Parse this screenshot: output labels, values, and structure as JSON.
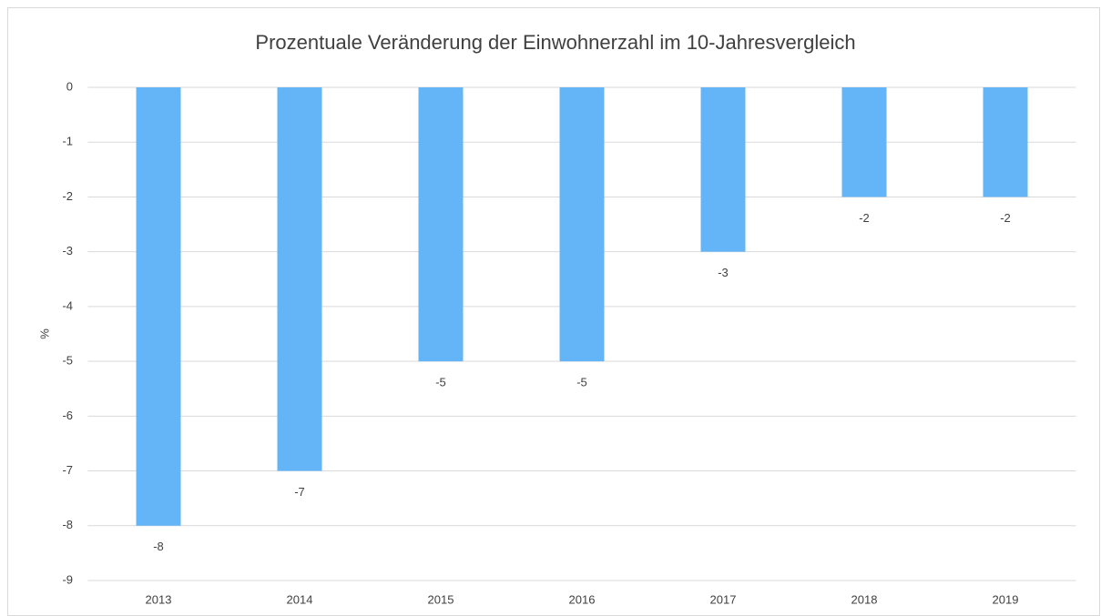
{
  "chart_data": {
    "type": "bar",
    "title": "Prozentuale Veränderung der Einwohnerzahl im 10-Jahresvergleich",
    "y_label": "%",
    "categories": [
      "2013",
      "2014",
      "2015",
      "2016",
      "2017",
      "2018",
      "2019"
    ],
    "values": [
      -8,
      -7,
      -5,
      -5,
      -3,
      -2,
      -2
    ],
    "color": "#63b5f7",
    "ylim": [
      -9,
      0
    ],
    "yticks": [
      0,
      -1,
      -2,
      -3,
      -4,
      -5,
      -6,
      -7,
      -8,
      -9
    ],
    "grid": true
  }
}
